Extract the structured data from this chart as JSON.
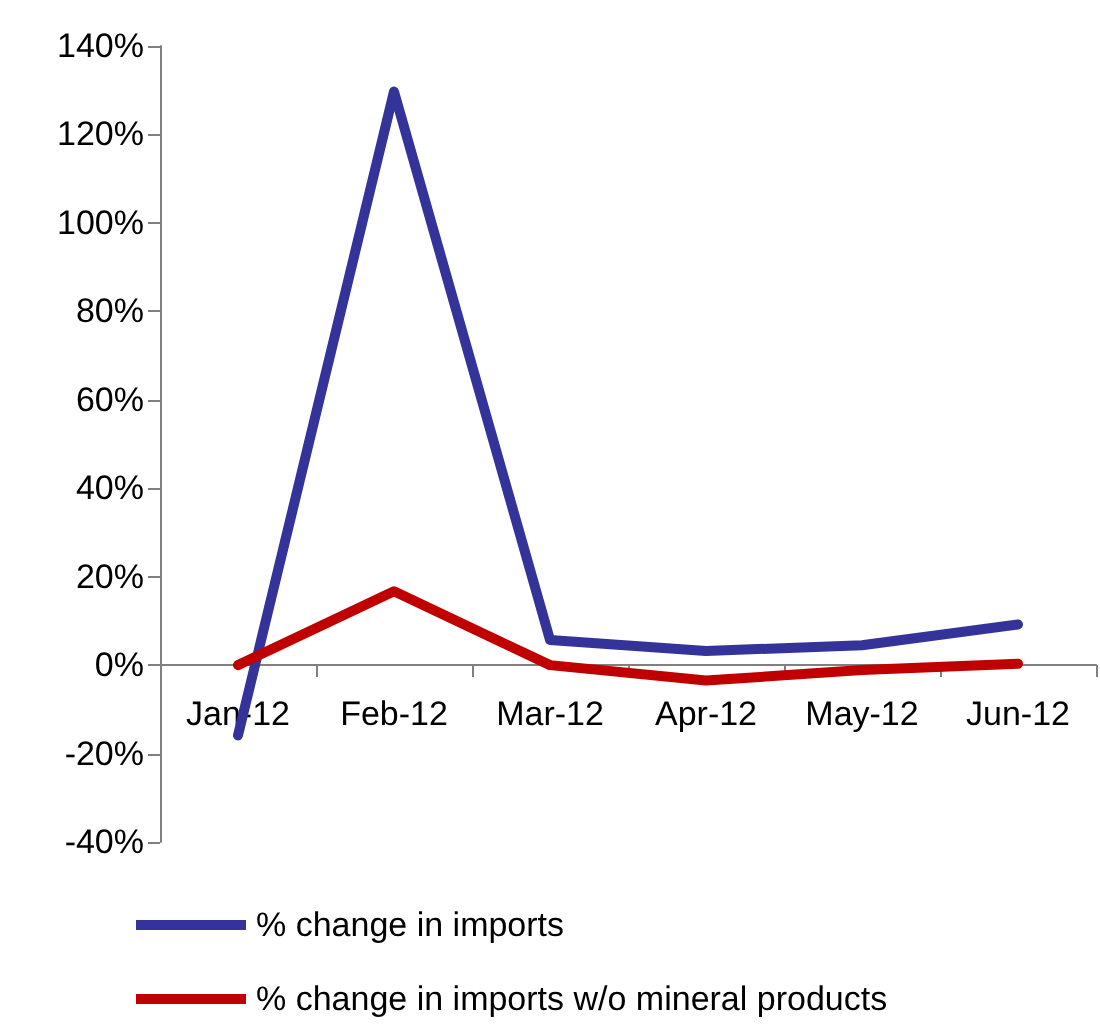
{
  "chart_data": {
    "type": "line",
    "categories": [
      "Jan-12",
      "Feb-12",
      "Mar-12",
      "Apr-12",
      "May-12",
      "Jun-12"
    ],
    "series": [
      {
        "name": "% change in imports",
        "color": "#333399",
        "values": [
          -15.9,
          129.7,
          5.7,
          3.2,
          4.5,
          9.2
        ]
      },
      {
        "name": "% change in imports w/o mineral products",
        "color": "#c00000",
        "values": [
          0,
          16.7,
          0,
          -3.5,
          -1.1,
          0.3
        ]
      }
    ],
    "ylim": [
      -40,
      140
    ],
    "yticks": [
      {
        "value": -40,
        "label": "-40%"
      },
      {
        "value": -20,
        "label": "-20%"
      },
      {
        "value": 0,
        "label": "0%"
      },
      {
        "value": 20,
        "label": "20%"
      },
      {
        "value": 40,
        "label": "40%"
      },
      {
        "value": 60,
        "label": "60%"
      },
      {
        "value": 80,
        "label": "80%"
      },
      {
        "value": 100,
        "label": "100%"
      },
      {
        "value": 120,
        "label": "120%"
      },
      {
        "value": 140,
        "label": "140%"
      }
    ],
    "grid": false,
    "legend": "bottom",
    "marker": "none",
    "line_style": "solid"
  }
}
